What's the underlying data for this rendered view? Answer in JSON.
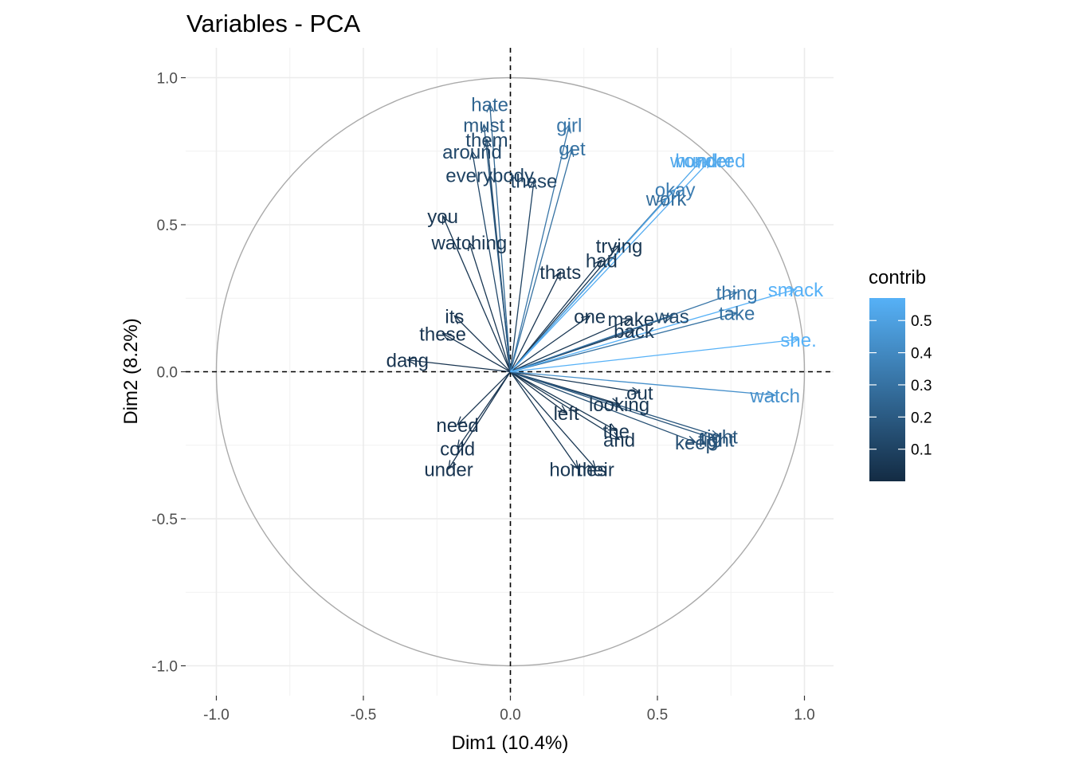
{
  "chart_data": {
    "type": "scatter",
    "title": "Variables - PCA",
    "xlabel": "Dim1 (10.4%)",
    "ylabel": "Dim2 (8.2%)",
    "xlim": [
      -1.1,
      1.1
    ],
    "ylim": [
      -1.1,
      1.1
    ],
    "x_ticks": [
      -1.0,
      -0.5,
      0.0,
      0.5,
      1.0
    ],
    "y_ticks": [
      -1.0,
      -0.5,
      0.0,
      0.5,
      1.0
    ],
    "x_tick_labels": [
      "-1.0",
      "-0.5",
      "0.0",
      "0.5",
      "1.0"
    ],
    "y_tick_labels": [
      "-1.0",
      "-0.5",
      "0.0",
      "0.5",
      "1.0"
    ],
    "grid": true,
    "legend": {
      "title": "contrib",
      "position": "right",
      "ticks": [
        0.1,
        0.2,
        0.3,
        0.4,
        0.5
      ],
      "tick_labels": [
        "0.1",
        "0.2",
        "0.3",
        "0.4",
        "0.5"
      ],
      "range": [
        0.0,
        0.57
      ],
      "color_low": "#132B43",
      "color_high": "#56B1F7"
    },
    "series": [
      {
        "values": [
          {
            "label": "girl",
            "x": 0.2,
            "y": 0.84,
            "contrib": 0.32
          },
          {
            "label": "get",
            "x": 0.21,
            "y": 0.76,
            "contrib": 0.3
          },
          {
            "label": "hundred",
            "x": 0.68,
            "y": 0.72,
            "contrib": 0.55
          },
          {
            "label": "wonder",
            "x": 0.65,
            "y": 0.72,
            "contrib": 0.53
          },
          {
            "label": "okay",
            "x": 0.56,
            "y": 0.62,
            "contrib": 0.35
          },
          {
            "label": "work",
            "x": 0.53,
            "y": 0.59,
            "contrib": 0.28
          },
          {
            "label": "trying",
            "x": 0.37,
            "y": 0.43,
            "contrib": 0.05
          },
          {
            "label": "had",
            "x": 0.31,
            "y": 0.38,
            "contrib": 0.05
          },
          {
            "label": "thats",
            "x": 0.17,
            "y": 0.34,
            "contrib": 0.04
          },
          {
            "label": "thing",
            "x": 0.77,
            "y": 0.27,
            "contrib": 0.32
          },
          {
            "label": "smack",
            "x": 0.97,
            "y": 0.28,
            "contrib": 0.57
          },
          {
            "label": "take",
            "x": 0.77,
            "y": 0.2,
            "contrib": 0.3
          },
          {
            "label": "was",
            "x": 0.55,
            "y": 0.19,
            "contrib": 0.14
          },
          {
            "label": "make",
            "x": 0.41,
            "y": 0.18,
            "contrib": 0.05
          },
          {
            "label": "back",
            "x": 0.42,
            "y": 0.14,
            "contrib": 0.07
          },
          {
            "label": "one",
            "x": 0.27,
            "y": 0.19,
            "contrib": 0.05
          },
          {
            "label": "she.",
            "x": 0.98,
            "y": 0.11,
            "contrib": 0.57
          },
          {
            "label": "watch",
            "x": 0.9,
            "y": -0.08,
            "contrib": 0.43
          },
          {
            "label": "out",
            "x": 0.44,
            "y": -0.07,
            "contrib": 0.06
          },
          {
            "label": "looking",
            "x": 0.37,
            "y": -0.11,
            "contrib": 0.05
          },
          {
            "label": "left",
            "x": 0.19,
            "y": -0.14,
            "contrib": 0.03
          },
          {
            "label": "the",
            "x": 0.36,
            "y": -0.2,
            "contrib": 0.05
          },
          {
            "label": "and",
            "x": 0.37,
            "y": -0.23,
            "contrib": 0.05
          },
          {
            "label": "keep",
            "x": 0.63,
            "y": -0.24,
            "contrib": 0.15
          },
          {
            "label": "fight",
            "x": 0.7,
            "y": -0.23,
            "contrib": 0.17
          },
          {
            "label": "right",
            "x": 0.71,
            "y": -0.22,
            "contrib": 0.18
          },
          {
            "label": "homes",
            "x": 0.23,
            "y": -0.33,
            "contrib": 0.05
          },
          {
            "label": "their",
            "x": 0.29,
            "y": -0.33,
            "contrib": 0.05
          },
          {
            "label": "hate",
            "x": -0.07,
            "y": 0.91,
            "contrib": 0.25
          },
          {
            "label": "must",
            "x": -0.09,
            "y": 0.84,
            "contrib": 0.2
          },
          {
            "label": "them",
            "x": -0.08,
            "y": 0.79,
            "contrib": 0.12
          },
          {
            "label": "around",
            "x": -0.13,
            "y": 0.75,
            "contrib": 0.12
          },
          {
            "label": "everybody",
            "x": -0.07,
            "y": 0.67,
            "contrib": 0.1
          },
          {
            "label": "these",
            "x": 0.08,
            "y": 0.65,
            "contrib": 0.1
          },
          {
            "label": "you",
            "x": -0.23,
            "y": 0.53,
            "contrib": 0.05
          },
          {
            "label": "watching",
            "x": -0.14,
            "y": 0.44,
            "contrib": 0.05
          },
          {
            "label": "its",
            "x": -0.19,
            "y": 0.19,
            "contrib": 0.04
          },
          {
            "label": "these",
            "x": -0.23,
            "y": 0.13,
            "contrib": 0.04
          },
          {
            "label": "dang",
            "x": -0.35,
            "y": 0.04,
            "contrib": 0.04
          },
          {
            "label": "need",
            "x": -0.18,
            "y": -0.18,
            "contrib": 0.04
          },
          {
            "label": "cold",
            "x": -0.18,
            "y": -0.26,
            "contrib": 0.04
          },
          {
            "label": "under",
            "x": -0.21,
            "y": -0.33,
            "contrib": 0.04
          }
        ]
      }
    ]
  }
}
